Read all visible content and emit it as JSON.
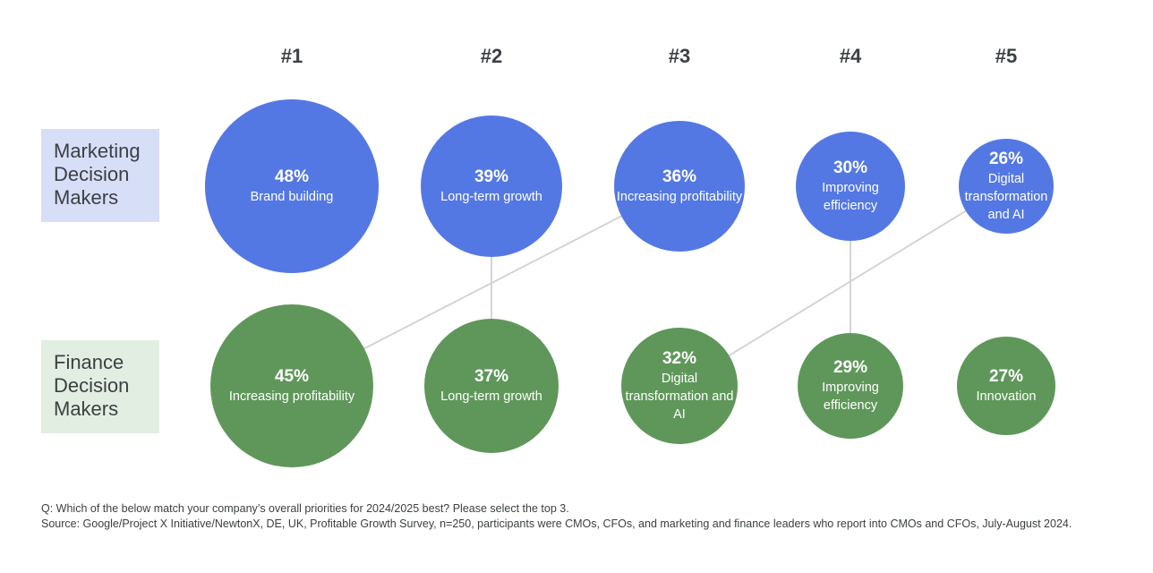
{
  "ranks": [
    "#1",
    "#2",
    "#3",
    "#4",
    "#5"
  ],
  "groups": {
    "marketing": {
      "label_lines": [
        "Marketing",
        "Decision",
        "Makers"
      ],
      "color": "#5478e3",
      "label_bg": "#d7def8",
      "items": [
        {
          "rank": 1,
          "percent": "48%",
          "value": 48,
          "label": "Brand building"
        },
        {
          "rank": 2,
          "percent": "39%",
          "value": 39,
          "label": "Long-term growth"
        },
        {
          "rank": 3,
          "percent": "36%",
          "value": 36,
          "label": "Increasing profitability"
        },
        {
          "rank": 4,
          "percent": "30%",
          "value": 30,
          "label": "Improving efficiency"
        },
        {
          "rank": 5,
          "percent": "26%",
          "value": 26,
          "label": "Digital transformation and AI"
        }
      ]
    },
    "finance": {
      "label_lines": [
        "Finance",
        "Decision",
        "Makers"
      ],
      "color": "#5f975a",
      "label_bg": "#e3eee3",
      "items": [
        {
          "rank": 1,
          "percent": "45%",
          "value": 45,
          "label": "Increasing profitability"
        },
        {
          "rank": 2,
          "percent": "37%",
          "value": 37,
          "label": "Long-term growth"
        },
        {
          "rank": 3,
          "percent": "32%",
          "value": 32,
          "label": "Digital transformation and AI"
        },
        {
          "rank": 4,
          "percent": "29%",
          "value": 29,
          "label": "Improving efficiency"
        },
        {
          "rank": 5,
          "percent": "27%",
          "value": 27,
          "label": "Innovation"
        }
      ]
    }
  },
  "links": [
    {
      "topic": "Long-term growth",
      "marketing_rank": 2,
      "finance_rank": 2
    },
    {
      "topic": "Increasing profitability",
      "marketing_rank": 3,
      "finance_rank": 1
    },
    {
      "topic": "Improving efficiency",
      "marketing_rank": 4,
      "finance_rank": 4
    },
    {
      "topic": "Digital transformation and AI",
      "marketing_rank": 5,
      "finance_rank": 3
    }
  ],
  "footnote": {
    "question": "Q: Which of the below match your company’s overall priorities for 2024/2025 best? Please select the top 3.",
    "source": "Source: Google/Project X Initiative/NewtonX, DE, UK, Profitable Growth Survey, n=250, participants were CMOs, CFOs, and marketing and  finance leaders who report into CMOs and CFOs, July-August 2024."
  }
}
